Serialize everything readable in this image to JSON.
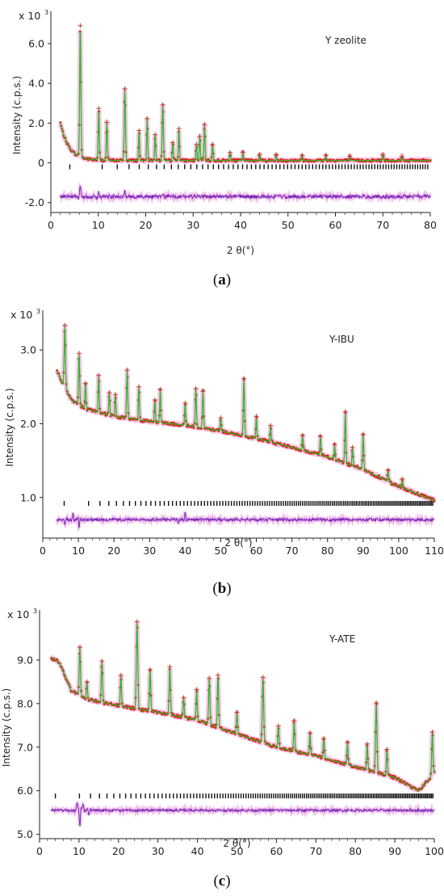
{
  "chart_data": [
    {
      "type": "line",
      "panel": "a",
      "caption": "a",
      "sample_label": "Y zeolite",
      "multiplier_label": "x 10",
      "multiplier_exp": "3",
      "ylabel": "Intensity (c.p.s.)",
      "xlabel": "2 θ(°)",
      "xlim": [
        0,
        80
      ],
      "ylim": [
        -2.5,
        7.3
      ],
      "xticks": [
        0,
        10,
        20,
        30,
        40,
        50,
        60,
        70,
        80
      ],
      "xtick_labels": [
        "0",
        "10",
        "20",
        "30",
        "40",
        "50",
        "60",
        "70",
        "80"
      ],
      "yticks": [
        -2,
        0,
        2,
        4,
        6
      ],
      "ytick_labels": [
        "-2.0",
        "0",
        "2.0",
        "4.0",
        "6.0"
      ],
      "x_range": [
        2,
        80
      ],
      "background": {
        "a": 0.12,
        "b": 1.9,
        "tau": 1.8
      },
      "peaks": [
        [
          6.2,
          6.6,
          0.18
        ],
        [
          10.1,
          2.6,
          0.16
        ],
        [
          11.8,
          1.9,
          0.16
        ],
        [
          15.6,
          3.6,
          0.18
        ],
        [
          18.6,
          1.5,
          0.15
        ],
        [
          20.3,
          2.1,
          0.15
        ],
        [
          22.0,
          1.3,
          0.15
        ],
        [
          23.6,
          2.8,
          0.17
        ],
        [
          25.7,
          0.9,
          0.15
        ],
        [
          27.0,
          1.6,
          0.15
        ],
        [
          30.7,
          0.8,
          0.15
        ],
        [
          31.4,
          1.2,
          0.15
        ],
        [
          32.4,
          1.8,
          0.16
        ],
        [
          34.1,
          0.8,
          0.15
        ],
        [
          37.8,
          0.4,
          0.15
        ],
        [
          40.5,
          0.4,
          0.15
        ],
        [
          44.0,
          0.3,
          0.15
        ],
        [
          47.5,
          0.3,
          0.15
        ],
        [
          53.0,
          0.25,
          0.15
        ],
        [
          58.0,
          0.25,
          0.15
        ],
        [
          63.0,
          0.2,
          0.15
        ],
        [
          70.0,
          0.3,
          0.15
        ],
        [
          74.0,
          0.2,
          0.15
        ]
      ],
      "tick_row_y": -0.2,
      "tick_start": 4,
      "tick_density": 80,
      "diff_baseline": -1.7,
      "diff_amp": 0.09,
      "diff_spikes": [
        [
          6.2,
          0.55
        ],
        [
          10.1,
          0.2
        ],
        [
          15.6,
          0.25
        ],
        [
          23.6,
          0.15
        ]
      ]
    },
    {
      "type": "line",
      "panel": "b",
      "caption": "b",
      "sample_label": "Y-IBU",
      "multiplier_label": "x 10",
      "multiplier_exp": "3",
      "ylabel": "Intensity (c.p.s.)",
      "xlabel": "2 θ(°)",
      "xlim": [
        0,
        110
      ],
      "ylim": [
        0.45,
        3.45
      ],
      "xticks": [
        0,
        10,
        20,
        30,
        40,
        50,
        60,
        70,
        80,
        90,
        100,
        110
      ],
      "xtick_labels": [
        "0",
        "10",
        "20",
        "30",
        "40",
        "50",
        "60",
        "70",
        "80",
        "90",
        "100",
        "110"
      ],
      "yticks": [
        1.0,
        2.0,
        3.0
      ],
      "ytick_labels": [
        "1.0",
        "2.0",
        "3.0"
      ],
      "x_range": [
        4,
        110
      ],
      "background_pts": [
        [
          4,
          2.72
        ],
        [
          6,
          2.5
        ],
        [
          8,
          2.32
        ],
        [
          12,
          2.2
        ],
        [
          20,
          2.1
        ],
        [
          30,
          2.03
        ],
        [
          40,
          1.98
        ],
        [
          50,
          1.9
        ],
        [
          60,
          1.8
        ],
        [
          70,
          1.68
        ],
        [
          80,
          1.55
        ],
        [
          90,
          1.38
        ],
        [
          100,
          1.15
        ],
        [
          110,
          0.96
        ]
      ],
      "peaks": [
        [
          6.2,
          0.85,
          0.25
        ],
        [
          10.2,
          0.7,
          0.22
        ],
        [
          12.0,
          0.35,
          0.2
        ],
        [
          15.7,
          0.5,
          0.2
        ],
        [
          18.7,
          0.3,
          0.2
        ],
        [
          20.4,
          0.3,
          0.2
        ],
        [
          23.7,
          0.65,
          0.22
        ],
        [
          27.0,
          0.45,
          0.2
        ],
        [
          31.5,
          0.3,
          0.2
        ],
        [
          33.0,
          0.45,
          0.2
        ],
        [
          40.0,
          0.3,
          0.2
        ],
        [
          43.0,
          0.52,
          0.22
        ],
        [
          45.0,
          0.5,
          0.22
        ],
        [
          50.0,
          0.18,
          0.2
        ],
        [
          56.5,
          0.78,
          0.22
        ],
        [
          60.0,
          0.3,
          0.2
        ],
        [
          64.0,
          0.22,
          0.2
        ],
        [
          73.0,
          0.2,
          0.2
        ],
        [
          78.0,
          0.25,
          0.2
        ],
        [
          82.0,
          0.2,
          0.2
        ],
        [
          85.0,
          0.7,
          0.22
        ],
        [
          87.0,
          0.25,
          0.2
        ],
        [
          90.0,
          0.48,
          0.22
        ],
        [
          97.0,
          0.15,
          0.2
        ],
        [
          101.0,
          0.12,
          0.2
        ]
      ],
      "tick_row_y": 0.92,
      "tick_start": 6,
      "tick_density": 140,
      "diff_baseline": 0.7,
      "diff_amp": 0.02,
      "diff_spikes": [
        [
          6.2,
          -0.08
        ],
        [
          8.5,
          0.08
        ],
        [
          10.2,
          -0.1
        ],
        [
          38.0,
          -0.06
        ],
        [
          40.0,
          0.1
        ]
      ]
    },
    {
      "type": "line",
      "panel": "c",
      "caption": "c",
      "sample_label": "Y-ATE",
      "multiplier_label": "x 10",
      "multiplier_exp": "3",
      "ylabel": "Intensity (c.p.s.)",
      "xlabel": "2 θ(°)",
      "xlim": [
        0,
        100
      ],
      "ylim": [
        4.9,
        10.0
      ],
      "xticks": [
        0,
        10,
        20,
        30,
        40,
        50,
        60,
        70,
        80,
        90,
        100
      ],
      "xtick_labels": [
        "0",
        "10",
        "20",
        "30",
        "40",
        "50",
        "60",
        "70",
        "80",
        "90",
        "100"
      ],
      "yticks": [
        5.0,
        6.0,
        7.0,
        8.0,
        9.0
      ],
      "ytick_labels": [
        "5.0",
        "6.0",
        "7.0",
        "8.0",
        "9.0"
      ],
      "x_range": [
        3,
        100
      ],
      "background_pts": [
        [
          3,
          9.05
        ],
        [
          5,
          8.95
        ],
        [
          8,
          8.3
        ],
        [
          12,
          8.1
        ],
        [
          20,
          7.95
        ],
        [
          30,
          7.8
        ],
        [
          40,
          7.62
        ],
        [
          50,
          7.3
        ],
        [
          60,
          7.0
        ],
        [
          70,
          6.8
        ],
        [
          80,
          6.55
        ],
        [
          90,
          6.3
        ],
        [
          96,
          6.0
        ],
        [
          100,
          6.4
        ]
      ],
      "peaks": [
        [
          10.2,
          1.1,
          0.22
        ],
        [
          12.0,
          0.4,
          0.2
        ],
        [
          15.8,
          0.95,
          0.22
        ],
        [
          20.6,
          0.7,
          0.2
        ],
        [
          24.7,
          2.0,
          0.25
        ],
        [
          28.0,
          0.95,
          0.22
        ],
        [
          33.0,
          1.1,
          0.22
        ],
        [
          36.5,
          0.45,
          0.2
        ],
        [
          39.8,
          0.7,
          0.2
        ],
        [
          43.0,
          1.05,
          0.22
        ],
        [
          45.2,
          1.2,
          0.22
        ],
        [
          50.0,
          0.5,
          0.2
        ],
        [
          56.6,
          1.5,
          0.24
        ],
        [
          60.5,
          0.5,
          0.2
        ],
        [
          64.5,
          0.7,
          0.2
        ],
        [
          68.5,
          0.5,
          0.2
        ],
        [
          72.0,
          0.45,
          0.2
        ],
        [
          78.0,
          0.5,
          0.2
        ],
        [
          83.0,
          0.6,
          0.2
        ],
        [
          85.3,
          1.6,
          0.24
        ],
        [
          88.0,
          0.6,
          0.2
        ],
        [
          99.5,
          1.0,
          0.22
        ]
      ],
      "tick_row_y": 5.88,
      "tick_start": 4,
      "tick_density": 150,
      "diff_baseline": 5.55,
      "diff_amp": 0.03,
      "diff_spikes": [
        [
          9.5,
          0.18
        ],
        [
          10.2,
          -0.38
        ],
        [
          11.0,
          0.12
        ],
        [
          12.5,
          -0.12
        ]
      ]
    }
  ]
}
